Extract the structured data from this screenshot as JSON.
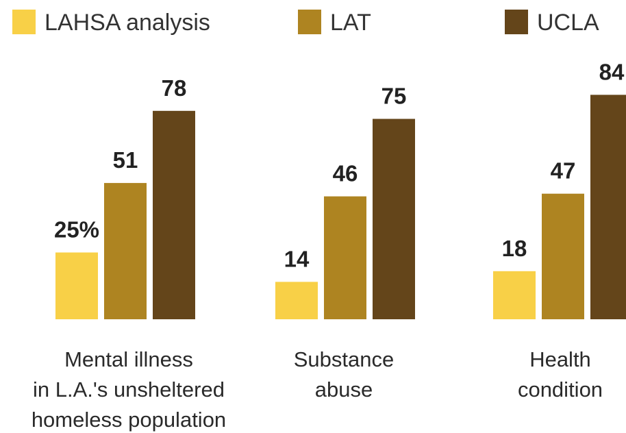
{
  "chart_data": {
    "type": "bar",
    "title": "",
    "xlabel": "",
    "ylabel": "",
    "ylim": [
      0,
      100
    ],
    "grid": false,
    "legend_position": "top",
    "categories": [
      [
        "Mental illness",
        "in L.A.'s unsheltered",
        "homeless population"
      ],
      [
        "Substance",
        "abuse"
      ],
      [
        "Health",
        "condition"
      ]
    ],
    "series": [
      {
        "name": "LAHSA analysis",
        "color": "#f8d047",
        "values": [
          25,
          14,
          18
        ],
        "labels": [
          "25%",
          "14",
          "18"
        ]
      },
      {
        "name": "LAT",
        "color": "#ae8421",
        "values": [
          51,
          46,
          47
        ],
        "labels": [
          "51",
          "46",
          "47"
        ]
      },
      {
        "name": "UCLA",
        "color": "#64451a",
        "values": [
          78,
          75,
          84
        ],
        "labels": [
          "78",
          "75",
          "84"
        ]
      }
    ]
  }
}
